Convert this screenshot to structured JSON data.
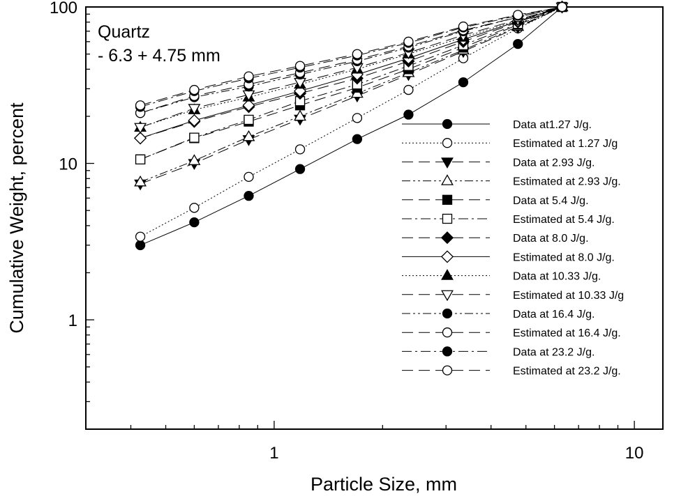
{
  "chart_data": {
    "type": "line",
    "xlabel": "Particle Size, mm",
    "ylabel": "Cumulative Weight, percent",
    "xscale": "log",
    "yscale": "log",
    "xlim": [
      0.3,
      12
    ],
    "ylim": [
      0.2,
      100
    ],
    "annotation_lines": [
      "Quartz",
      "- 6.3 + 4.75 mm"
    ],
    "x_ticks": [
      {
        "value": 1,
        "label": "1"
      },
      {
        "value": 10,
        "label": "10"
      }
    ],
    "y_ticks": [
      {
        "value": 1,
        "label": "1"
      },
      {
        "value": 10,
        "label": "10"
      },
      {
        "value": 100,
        "label": "100"
      }
    ],
    "legend_position": "right",
    "x": [
      0.425,
      0.6,
      0.85,
      1.18,
      1.7,
      2.36,
      3.35,
      4.75,
      6.3
    ],
    "series": [
      {
        "name": "Data at1.27 J/g.",
        "marker": "circle",
        "filled": true,
        "dash": "solid",
        "values": [
          3.0,
          4.2,
          6.2,
          9.2,
          14.3,
          20.5,
          33,
          58,
          100
        ]
      },
      {
        "name": "Estimated at 1.27 J/g",
        "marker": "circle",
        "filled": false,
        "dash": "dot",
        "values": [
          3.4,
          5.2,
          8.2,
          12.3,
          19.5,
          29.5,
          47,
          73,
          100
        ]
      },
      {
        "name": "Data at 2.93 J/g.",
        "marker": "triangle-down",
        "filled": true,
        "dash": "longdash",
        "values": [
          7.4,
          10.0,
          14.2,
          19.2,
          27,
          37,
          52,
          74,
          100
        ]
      },
      {
        "name": "Estimated at 2.93 J/g.",
        "marker": "triangle-up",
        "filled": false,
        "dash": "dashdotdot",
        "values": [
          7.6,
          10.4,
          14.8,
          20,
          28,
          38,
          53,
          75,
          100
        ]
      },
      {
        "name": "Data at 5.4 J/g.",
        "marker": "square",
        "filled": true,
        "dash": "longdash",
        "values": [
          10.6,
          14.5,
          18.5,
          23.5,
          30.5,
          40,
          55,
          77,
          100
        ]
      },
      {
        "name": "Estimated at 5.4 J/g.",
        "marker": "square",
        "filled": false,
        "dash": "dashdot",
        "values": [
          10.6,
          14.6,
          19,
          25,
          32,
          42,
          57,
          78,
          100
        ]
      },
      {
        "name": "Data at 8.0 J/g.",
        "marker": "diamond",
        "filled": true,
        "dash": "longdash",
        "values": [
          14.5,
          18.5,
          23,
          28,
          35,
          45,
          60,
          80,
          100
        ]
      },
      {
        "name": "Estimated at 8.0 J/g.",
        "marker": "diamond",
        "filled": false,
        "dash": "solid",
        "values": [
          14.5,
          18.8,
          23.5,
          29,
          37,
          47,
          62,
          81,
          100
        ]
      },
      {
        "name": "Data at 10.33 J/g.",
        "marker": "triangle-up",
        "filled": true,
        "dash": "dot",
        "values": [
          17,
          22,
          26.5,
          32,
          40,
          50,
          64,
          82,
          100
        ]
      },
      {
        "name": "Estimated at 10.33 J/g",
        "marker": "triangle-down",
        "filled": false,
        "dash": "longdash",
        "values": [
          17,
          22.5,
          27.5,
          33,
          41,
          51,
          66,
          83,
          100
        ]
      },
      {
        "name": "Data at 16.4 J/g.",
        "marker": "circle",
        "filled": true,
        "dash": "dashdotdot",
        "values": [
          21,
          26.5,
          31,
          37,
          45,
          55,
          70,
          86,
          100
        ]
      },
      {
        "name": "Estimated at 16.4 J/g.",
        "marker": "circle",
        "filled": false,
        "dash": "longdash",
        "values": [
          21,
          27,
          32,
          38,
          46,
          56,
          71,
          86,
          100
        ]
      },
      {
        "name": "Data at 23.2 J/g.",
        "marker": "circle",
        "filled": true,
        "dash": "dashdot",
        "values": [
          23,
          29,
          35,
          41,
          49,
          59,
          74,
          88,
          100
        ]
      },
      {
        "name": "Estimated at 23.2 J/g.",
        "marker": "circle",
        "filled": false,
        "dash": "longdash",
        "values": [
          23.5,
          29.5,
          36,
          42,
          50,
          60,
          75,
          89,
          100
        ]
      }
    ]
  }
}
